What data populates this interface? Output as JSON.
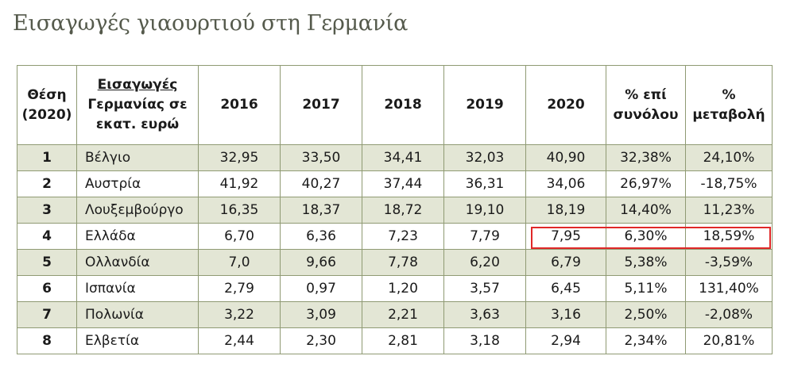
{
  "title": "Εισαγωγές γιαουρτιού στη Γερμανία",
  "header": {
    "rank_line1": "Θέση",
    "rank_line2": "(2020)",
    "country_line1": "Εισαγωγές",
    "country_line2": "Γερμανίας σε",
    "country_line3": "εκατ. ευρώ",
    "y2016": "2016",
    "y2017": "2017",
    "y2018": "2018",
    "y2019": "2019",
    "y2020": "2020",
    "share_line1": "% επί",
    "share_line2": "συνόλου",
    "change_line1": "%",
    "change_line2": "μεταβολή"
  },
  "rows": [
    {
      "rank": "1",
      "country": "Βέλγιο",
      "y2016": "32,95",
      "y2017": "33,50",
      "y2018": "34,41",
      "y2019": "32,03",
      "y2020": "40,90",
      "share": "32,38%",
      "change": "24,10%"
    },
    {
      "rank": "2",
      "country": "Αυστρία",
      "y2016": "41,92",
      "y2017": "40,27",
      "y2018": "37,44",
      "y2019": "36,31",
      "y2020": "34,06",
      "share": "26,97%",
      "change": "-18,75%"
    },
    {
      "rank": "3",
      "country": "Λουξεμβούργο",
      "y2016": "16,35",
      "y2017": "18,37",
      "y2018": "18,72",
      "y2019": "19,10",
      "y2020": "18,19",
      "share": "14,40%",
      "change": "11,23%"
    },
    {
      "rank": "4",
      "country": "Ελλάδα",
      "y2016": "6,70",
      "y2017": "6,36",
      "y2018": "7,23",
      "y2019": "7,79",
      "y2020": "7,95",
      "share": "6,30%",
      "change": "18,59%"
    },
    {
      "rank": "5",
      "country": "Ολλανδία",
      "y2016": "7,0",
      "y2017": "9,66",
      "y2018": "7,78",
      "y2019": "6,20",
      "y2020": "6,79",
      "share": "5,38%",
      "change": "-3,59%"
    },
    {
      "rank": "6",
      "country": "Ισπανία",
      "y2016": "2,79",
      "y2017": "0,97",
      "y2018": "1,20",
      "y2019": "3,57",
      "y2020": "6,45",
      "share": "5,11%",
      "change": "131,40%"
    },
    {
      "rank": "7",
      "country": "Πολωνία",
      "y2016": "3,22",
      "y2017": "3,09",
      "y2018": "2,21",
      "y2019": "3,63",
      "y2020": "3,16",
      "share": "2,50%",
      "change": "-2,08%"
    },
    {
      "rank": "8",
      "country": "Ελβετία",
      "y2016": "2,44",
      "y2017": "2,30",
      "y2018": "2,81",
      "y2019": "3,18",
      "y2020": "2,94",
      "share": "2,34%",
      "change": "20,81%"
    }
  ],
  "colors": {
    "border": "#8f9a73",
    "shaded_row": "#e3e6d5",
    "title": "#555a4c",
    "highlight_box": "#e02828"
  }
}
